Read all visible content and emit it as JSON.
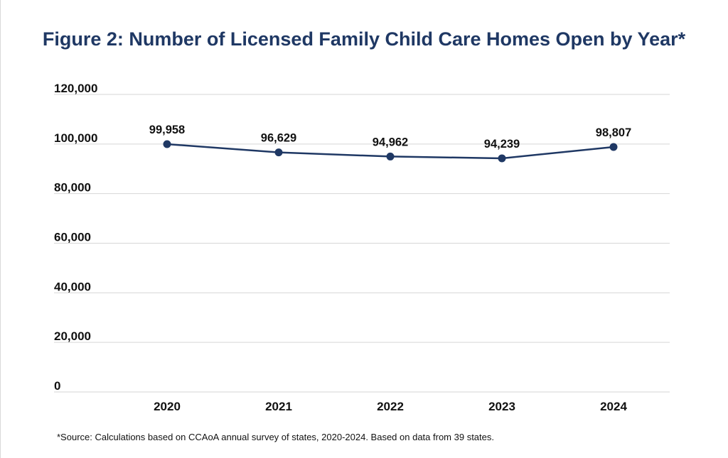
{
  "colors": {
    "title": "#1f3864",
    "series": "#1f3864",
    "grid": "#d6d6d6",
    "text": "#111111"
  },
  "source_note": "*Source: Calculations based on CCAoA annual survey of states, 2020-2024. Based on data from 39 states.",
  "chart_data": {
    "type": "line",
    "title": "Figure 2: Number of Licensed Family Child Care Homes Open by Year*",
    "xlabel": "",
    "ylabel": "",
    "categories": [
      "2020",
      "2021",
      "2022",
      "2023",
      "2024"
    ],
    "series": [
      {
        "values": [
          99958,
          96629,
          94962,
          94239,
          98807
        ],
        "data_labels": [
          "99,958",
          "96,629",
          "94,962",
          "94,239",
          "98,807"
        ]
      }
    ],
    "ylim": [
      0,
      120000
    ],
    "y_ticks": [
      0,
      20000,
      40000,
      60000,
      80000,
      100000,
      120000
    ],
    "y_tick_labels": [
      "0",
      "20,000",
      "40,000",
      "60,000",
      "80,000",
      "100,000",
      "120,000"
    ],
    "grid": true,
    "legend": "none",
    "markers": true
  }
}
